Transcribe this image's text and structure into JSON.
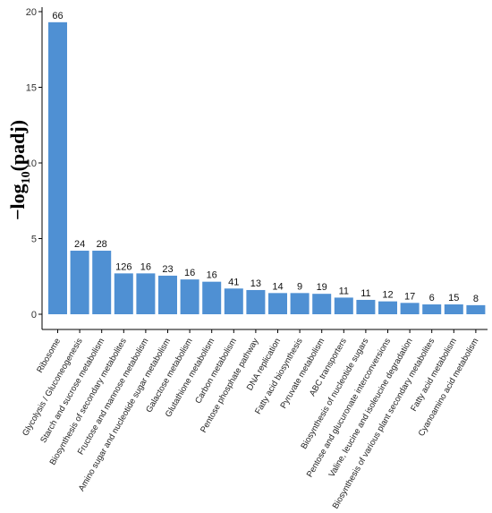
{
  "chart_data": {
    "type": "bar",
    "ylabel_main": "−log",
    "ylabel_sub": "10",
    "ylabel_tail": "(padj)",
    "ylim": [
      0,
      20
    ],
    "yticks": [
      0,
      5,
      10,
      15,
      20
    ],
    "bar_color": "#4f90d3",
    "categories": [
      "Ribosome",
      "Glycolysis / Gluconeogenesis",
      "Starch and sucrose metabolism",
      "Biosynthesis of secondary metabolites",
      "Fructose and mannose metabolism",
      "Amino sugar and nucleotide sugar metabolism",
      "Galactose metabolism",
      "Glutathione metabolism",
      "Carbon metabolism",
      "Pentose phosphate pathway",
      "DNA replication",
      "Fatty acid biosynthesis",
      "Pyruvate metabolism",
      "ABC transporters",
      "Biosynthesis of nucleotide sugars",
      "Pentose and glucuronate interconversions",
      "Valine, leucine and isoleucine degradation",
      "Biosynthesis of various plant secondary metabolites",
      "Fatty acid metabolism",
      "Cyanoamino acid metabolism"
    ],
    "values": [
      19.3,
      4.2,
      4.2,
      2.7,
      2.7,
      2.55,
      2.3,
      2.15,
      1.7,
      1.6,
      1.4,
      1.4,
      1.35,
      1.1,
      0.95,
      0.85,
      0.75,
      0.65,
      0.65,
      0.6
    ],
    "labels": [
      "66",
      "24",
      "28",
      "126",
      "16",
      "23",
      "16",
      "16",
      "41",
      "13",
      "14",
      "9",
      "19",
      "11",
      "11",
      "12",
      "17",
      "6",
      "15",
      "8"
    ]
  }
}
